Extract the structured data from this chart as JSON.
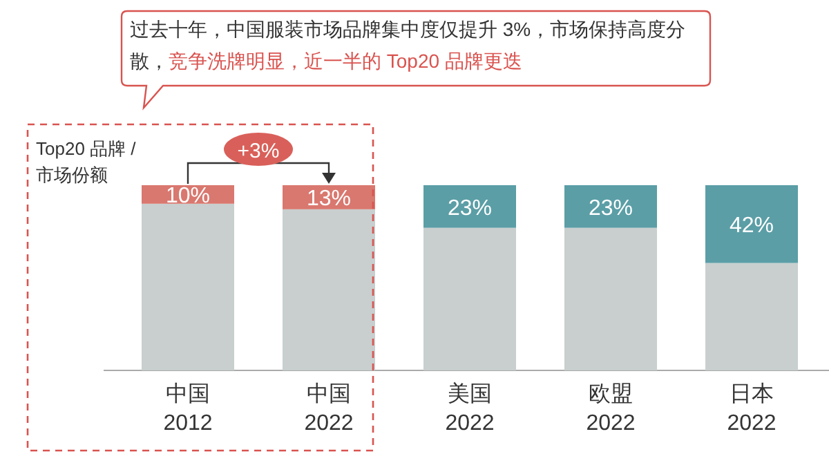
{
  "chart_data": {
    "type": "bar",
    "stacked": true,
    "title": "过去十年，中国服装市场品牌集中度仅提升 3%，市场保持高度分散，",
    "subtitle": "竞争洗牌明显，近一半的 Top20 品牌更迭",
    "categories": [
      "中国\n2012",
      "中国\n2022",
      "美国\n2022",
      "欧盟\n2022",
      "日本\n2022"
    ],
    "ylim": [
      0,
      100
    ],
    "series": [
      {
        "color": "#c8cfce",
        "values": [
          90,
          87,
          77,
          77,
          58
        ]
      },
      {
        "colors": [
          "#d9786f",
          "#d9786f",
          "#5b9ea6",
          "#5b9ea6",
          "#5b9ea6"
        ],
        "values": [
          10,
          13,
          23,
          23,
          42
        ],
        "value_labels": [
          "10%",
          "13%",
          "23%",
          "23%",
          "42%"
        ]
      }
    ],
    "ylabel": "Top20 品牌 / 市场份额",
    "annotations": [
      "+3%"
    ],
    "tick_labels": "x"
  }
}
